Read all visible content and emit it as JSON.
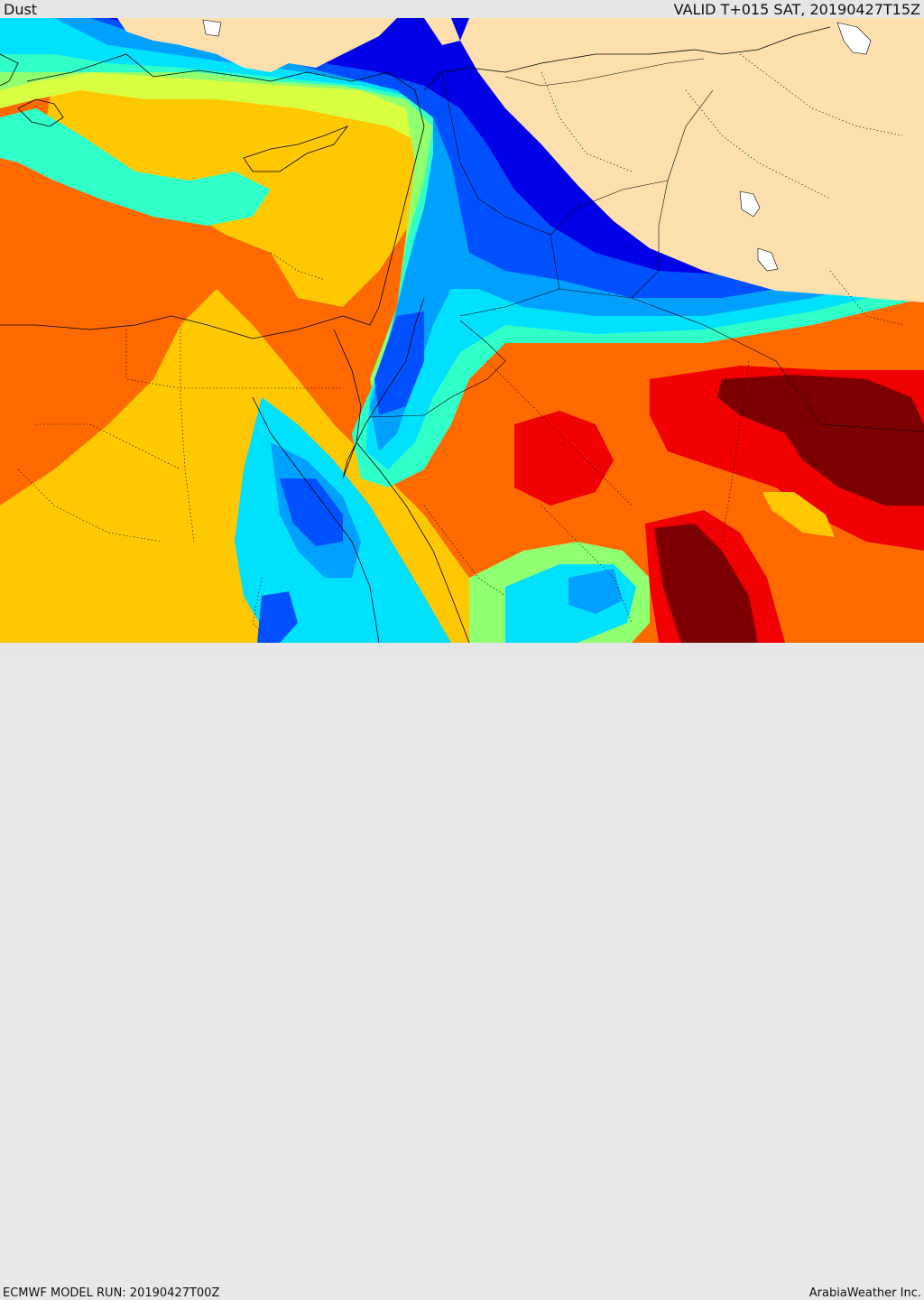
{
  "header": {
    "field_name": "Dust",
    "valid_time": "VALID T+015 SAT, 20190427T15Z"
  },
  "footer": {
    "model_run": "ECMWF MODEL RUN: 20190427T00Z",
    "credit": "ArabiaWeather Inc."
  },
  "colors": {
    "land_no_data": "#fde0ae",
    "water_no_data": "#ffffff",
    "levels": [
      "#0000e6",
      "#0050ff",
      "#00a0ff",
      "#00e0ff",
      "#30ffc8",
      "#90ff70",
      "#d8ff40",
      "#ffc800",
      "#ff6a00",
      "#f00000",
      "#7d0000"
    ]
  }
}
